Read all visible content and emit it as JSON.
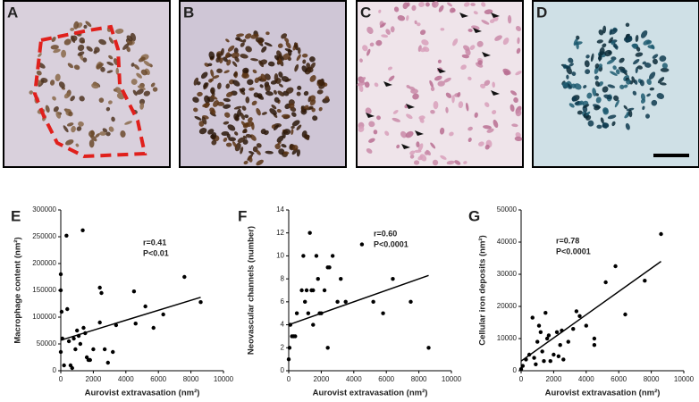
{
  "image_panels": {
    "labels": [
      "A",
      "B",
      "C",
      "D"
    ]
  },
  "chart_data": [
    {
      "type": "scatter",
      "label": "E",
      "xlabel": "Aurovist extravasation (nm²)",
      "ylabel": "Macrophage content (nm²)",
      "annotations": [
        "r=0.41",
        "P<0.01"
      ],
      "color": "#000000",
      "x": [
        0,
        0,
        50,
        100,
        0,
        200,
        350,
        400,
        500,
        600,
        700,
        800,
        900,
        1000,
        1100,
        1200,
        1350,
        1400,
        1500,
        1600,
        1700,
        1800,
        2000,
        2400,
        2500,
        2400,
        2700,
        2900,
        3200,
        3400,
        4500,
        4600,
        5200,
        5700,
        6300,
        7600,
        8600
      ],
      "values": [
        180000,
        150000,
        110000,
        60000,
        35000,
        10000,
        252000,
        115000,
        55000,
        10000,
        5000,
        60000,
        40000,
        75000,
        65000,
        50000,
        262000,
        80000,
        70000,
        25000,
        20000,
        20000,
        40000,
        155000,
        145000,
        90000,
        40000,
        15000,
        35000,
        85000,
        148000,
        88000,
        120000,
        80000,
        105000,
        175000,
        128000
      ],
      "fit": {
        "x": [
          0,
          8600
        ],
        "y": [
          57000,
          137000
        ]
      },
      "xlim": [
        0,
        10000
      ],
      "xticks": [
        0,
        2000,
        4000,
        6000,
        8000,
        10000
      ],
      "ylim": [
        0,
        300000
      ],
      "yticks": [
        0,
        50000,
        100000,
        150000,
        200000,
        250000,
        300000
      ]
    },
    {
      "type": "scatter",
      "label": "F",
      "xlabel": "Aurovist extravasation (nm²)",
      "ylabel": "Neovascular channels (number)",
      "annotations": [
        "r=0.60",
        "P<0.0001"
      ],
      "color": "#000000",
      "x": [
        0,
        50,
        100,
        200,
        300,
        400,
        500,
        800,
        900,
        1000,
        1100,
        1200,
        1300,
        1400,
        1500,
        1500,
        1700,
        1800,
        1900,
        2000,
        2200,
        2400,
        2500,
        2400,
        2700,
        3000,
        3200,
        3500,
        4500,
        5200,
        5800,
        6400,
        7500,
        8600
      ],
      "values": [
        1,
        2,
        4,
        3,
        3,
        3,
        5,
        7,
        10,
        6,
        7,
        5,
        12,
        7,
        4,
        7,
        10,
        8,
        5,
        5,
        7,
        9,
        9,
        2,
        10,
        6,
        8,
        6,
        11,
        6,
        5,
        8,
        6,
        2
      ],
      "fit": {
        "x": [
          0,
          8600
        ],
        "y": [
          4,
          8.3
        ]
      },
      "xlim": [
        0,
        10000
      ],
      "xticks": [
        0,
        2000,
        4000,
        6000,
        8000,
        10000
      ],
      "ylim": [
        0,
        14
      ],
      "yticks": [
        0,
        2,
        4,
        6,
        8,
        10,
        12,
        14
      ]
    },
    {
      "type": "scatter",
      "label": "G",
      "xlabel": "Aurovist extravasation (nm²)",
      "ylabel": "Cellular iron deposits (nm²)",
      "annotations": [
        "r=0.78",
        "P<0.0001"
      ],
      "color": "#000000",
      "x": [
        0,
        100,
        300,
        500,
        700,
        800,
        900,
        1000,
        1100,
        1200,
        1300,
        1400,
        1500,
        1600,
        1700,
        1800,
        2000,
        2200,
        2300,
        2400,
        2500,
        2600,
        2900,
        3200,
        3400,
        3600,
        4000,
        4500,
        4500,
        5200,
        5800,
        6400,
        7600,
        8600
      ],
      "values": [
        500,
        1500,
        3500,
        5000,
        16500,
        4000,
        2000,
        9000,
        14000,
        12000,
        6000,
        3000,
        18000,
        10000,
        11000,
        3000,
        5000,
        12000,
        4500,
        8000,
        12500,
        3500,
        9000,
        13000,
        18500,
        17000,
        14000,
        10000,
        8000,
        27500,
        32500,
        17500,
        28000,
        42500
      ],
      "fit": {
        "x": [
          0,
          8600
        ],
        "y": [
          3000,
          34000
        ]
      },
      "xlim": [
        0,
        10000
      ],
      "xticks": [
        0,
        2000,
        4000,
        6000,
        8000,
        10000
      ],
      "ylim": [
        0,
        50000
      ],
      "yticks": [
        0,
        10000,
        20000,
        30000,
        40000,
        50000
      ]
    }
  ]
}
